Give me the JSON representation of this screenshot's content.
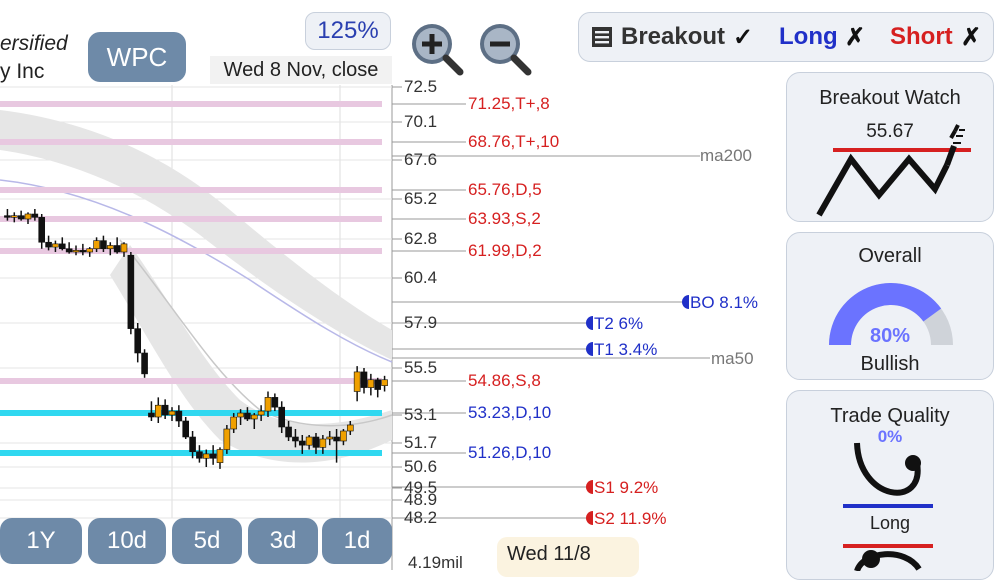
{
  "header": {
    "company_line1": "ersified",
    "company_line2": "y Inc",
    "ticker": "WPC",
    "zoom_level": "125%",
    "date_label": "Wed 8 Nov, close"
  },
  "price_axis": {
    "ticks": [
      "72.5",
      "70.1",
      "67.6",
      "65.2",
      "62.8",
      "60.4",
      "57.9",
      "55.5",
      "53.1",
      "51.7",
      "50.6",
      "49.5",
      "48.9",
      "48.2"
    ]
  },
  "levels": [
    {
      "label": "71.25,T+,8",
      "color": "#d62020",
      "line": "#e8c8e0"
    },
    {
      "label": "68.76,T+,10",
      "color": "#d62020",
      "line": "#e8c8e0"
    },
    {
      "label": "65.76,D,5",
      "color": "#d62020",
      "line": "#e8c8e0"
    },
    {
      "label": "63.93,S,2",
      "color": "#d62020",
      "line": "#e8c8e0"
    },
    {
      "label": "61.99,D,2",
      "color": "#d62020",
      "line": "#e8c8e0"
    },
    {
      "label": "54.86,S,8",
      "color": "#d62020",
      "line": "#e8c8e0"
    },
    {
      "label": "53.23,D,10",
      "color": "#2030c8",
      "line": "#30d8f0"
    },
    {
      "label": "51.26,D,10",
      "color": "#2030c8",
      "line": "#30d8f0"
    }
  ],
  "markers": {
    "ma200": "ma200",
    "ma50": "ma50",
    "bo": "BO 8.1%",
    "t2": "T2 6%",
    "t1": "T1 3.4%",
    "s1": "S1 9.2%",
    "s2": "S2 11.9%"
  },
  "timeframes": [
    "1Y",
    "10d",
    "5d",
    "3d",
    "1d"
  ],
  "volume_label": "4.19mil",
  "date_tag": "Wed 11/8",
  "status": {
    "breakout_label": "Breakout",
    "breakout_mark": "✓",
    "long_label": "Long",
    "long_mark": "✗",
    "short_label": "Short",
    "short_mark": "✗"
  },
  "breakout_watch": {
    "title": "Breakout Watch",
    "value": "55.67"
  },
  "overall": {
    "title": "Overall",
    "percent": "80%",
    "fraction": 0.8,
    "verdict": "Bullish"
  },
  "trade_quality": {
    "title": "Trade Quality",
    "percent": "0%",
    "long_label": "Long"
  },
  "colors": {
    "button": "#6e8aa8",
    "red": "#d62020",
    "blue": "#2030c8",
    "cyan": "#30d8f0",
    "pink": "#e8c8e0",
    "gauge": "#6b73ff"
  },
  "candles": [
    {
      "o": 64.2,
      "h": 64.6,
      "l": 63.9,
      "c": 64.1
    },
    {
      "o": 64.1,
      "h": 64.4,
      "l": 63.8,
      "c": 64.2
    },
    {
      "o": 64.2,
      "h": 64.5,
      "l": 63.9,
      "c": 64.0
    },
    {
      "o": 64.0,
      "h": 64.4,
      "l": 63.7,
      "c": 64.3
    },
    {
      "o": 64.3,
      "h": 64.6,
      "l": 63.9,
      "c": 64.1
    },
    {
      "o": 64.1,
      "h": 64.3,
      "l": 62.2,
      "c": 62.6
    },
    {
      "o": 62.6,
      "h": 63.0,
      "l": 62.1,
      "c": 62.3
    },
    {
      "o": 62.3,
      "h": 62.7,
      "l": 62.0,
      "c": 62.5
    },
    {
      "o": 62.5,
      "h": 62.9,
      "l": 62.1,
      "c": 62.2
    },
    {
      "o": 62.2,
      "h": 62.6,
      "l": 61.9,
      "c": 62.0
    },
    {
      "o": 62.0,
      "h": 62.4,
      "l": 61.8,
      "c": 62.1
    },
    {
      "o": 62.1,
      "h": 62.5,
      "l": 61.8,
      "c": 62.0
    },
    {
      "o": 62.0,
      "h": 62.3,
      "l": 61.7,
      "c": 62.2
    },
    {
      "o": 62.2,
      "h": 62.9,
      "l": 62.0,
      "c": 62.7
    },
    {
      "o": 62.7,
      "h": 63.0,
      "l": 62.0,
      "c": 62.2
    },
    {
      "o": 62.2,
      "h": 62.6,
      "l": 61.8,
      "c": 62.4
    },
    {
      "o": 62.4,
      "h": 62.9,
      "l": 61.9,
      "c": 62.0
    },
    {
      "o": 62.0,
      "h": 62.6,
      "l": 61.7,
      "c": 62.5
    },
    {
      "o": 61.8,
      "h": 62.0,
      "l": 57.3,
      "c": 57.6
    },
    {
      "o": 57.6,
      "h": 57.9,
      "l": 55.8,
      "c": 56.3
    },
    {
      "o": 56.3,
      "h": 56.5,
      "l": 55.0,
      "c": 55.2
    },
    {
      "o": 53.2,
      "h": 53.8,
      "l": 52.8,
      "c": 53.0
    },
    {
      "o": 53.0,
      "h": 54.0,
      "l": 52.7,
      "c": 53.6
    },
    {
      "o": 53.6,
      "h": 53.9,
      "l": 52.9,
      "c": 53.1
    },
    {
      "o": 53.1,
      "h": 53.5,
      "l": 52.8,
      "c": 53.3
    },
    {
      "o": 53.3,
      "h": 53.6,
      "l": 52.5,
      "c": 52.8
    },
    {
      "o": 52.8,
      "h": 53.0,
      "l": 51.9,
      "c": 52.0
    },
    {
      "o": 52.0,
      "h": 52.3,
      "l": 51.0,
      "c": 51.3
    },
    {
      "o": 51.3,
      "h": 51.6,
      "l": 50.8,
      "c": 51.0
    },
    {
      "o": 51.0,
      "h": 51.4,
      "l": 50.6,
      "c": 51.2
    },
    {
      "o": 51.2,
      "h": 51.6,
      "l": 50.7,
      "c": 51.0
    },
    {
      "o": 50.8,
      "h": 51.5,
      "l": 50.5,
      "c": 51.4
    },
    {
      "o": 51.4,
      "h": 52.6,
      "l": 51.2,
      "c": 52.4
    },
    {
      "o": 52.4,
      "h": 53.2,
      "l": 52.2,
      "c": 53.0
    },
    {
      "o": 53.0,
      "h": 53.4,
      "l": 52.6,
      "c": 53.2
    },
    {
      "o": 53.2,
      "h": 53.5,
      "l": 52.8,
      "c": 52.9
    },
    {
      "o": 52.9,
      "h": 53.2,
      "l": 52.4,
      "c": 53.1
    },
    {
      "o": 53.1,
      "h": 53.6,
      "l": 52.8,
      "c": 53.3
    },
    {
      "o": 53.3,
      "h": 54.3,
      "l": 53.0,
      "c": 54.0
    },
    {
      "o": 54.0,
      "h": 54.2,
      "l": 53.3,
      "c": 53.5
    },
    {
      "o": 53.5,
      "h": 53.8,
      "l": 52.2,
      "c": 52.5
    },
    {
      "o": 52.5,
      "h": 52.8,
      "l": 51.8,
      "c": 52.0
    },
    {
      "o": 52.0,
      "h": 52.4,
      "l": 51.5,
      "c": 51.8
    },
    {
      "o": 51.8,
      "h": 52.1,
      "l": 51.2,
      "c": 51.6
    },
    {
      "o": 51.6,
      "h": 52.1,
      "l": 51.4,
      "c": 52.0
    },
    {
      "o": 52.0,
      "h": 52.2,
      "l": 51.2,
      "c": 51.5
    },
    {
      "o": 51.5,
      "h": 52.1,
      "l": 51.2,
      "c": 51.9
    },
    {
      "o": 51.9,
      "h": 52.3,
      "l": 51.6,
      "c": 52.0
    },
    {
      "o": 52.0,
      "h": 52.4,
      "l": 50.8,
      "c": 51.8
    },
    {
      "o": 51.8,
      "h": 52.4,
      "l": 51.6,
      "c": 52.3
    },
    {
      "o": 52.3,
      "h": 52.8,
      "l": 52.1,
      "c": 52.6
    },
    {
      "o": 54.3,
      "h": 55.6,
      "l": 53.8,
      "c": 55.3
    },
    {
      "o": 55.3,
      "h": 55.5,
      "l": 54.2,
      "c": 54.5
    },
    {
      "o": 54.5,
      "h": 55.2,
      "l": 54.1,
      "c": 54.9
    },
    {
      "o": 54.9,
      "h": 55.0,
      "l": 54.0,
      "c": 54.4
    },
    {
      "o": 54.6,
      "h": 55.1,
      "l": 54.3,
      "c": 54.9
    }
  ]
}
